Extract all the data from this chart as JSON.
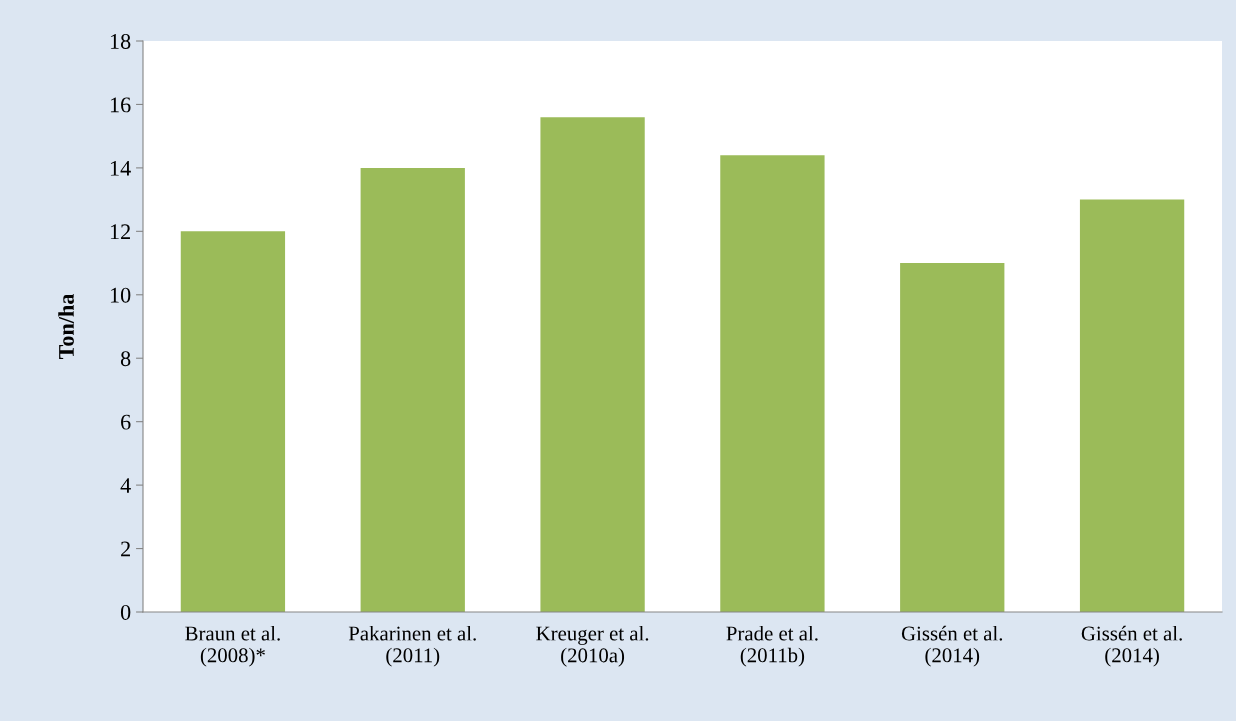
{
  "chart_data": {
    "type": "bar",
    "ylabel": "Ton/ha",
    "categories": [
      "Braun et al.\n(2008)*",
      "Pakarinen et al.\n(2011)",
      "Kreuger et al.\n(2010a)",
      "Prade et al.\n(2011b)",
      "Gissén et al.\n(2014)",
      "Gissén et al.\n(2014)"
    ],
    "values": [
      12,
      14,
      15.6,
      14.4,
      11,
      13
    ],
    "color": "#9bbb59",
    "ylim": [
      0,
      18
    ],
    "yticks": [
      0,
      2,
      4,
      6,
      8,
      10,
      12,
      14,
      16,
      18
    ],
    "grid": false,
    "legend": false
  }
}
